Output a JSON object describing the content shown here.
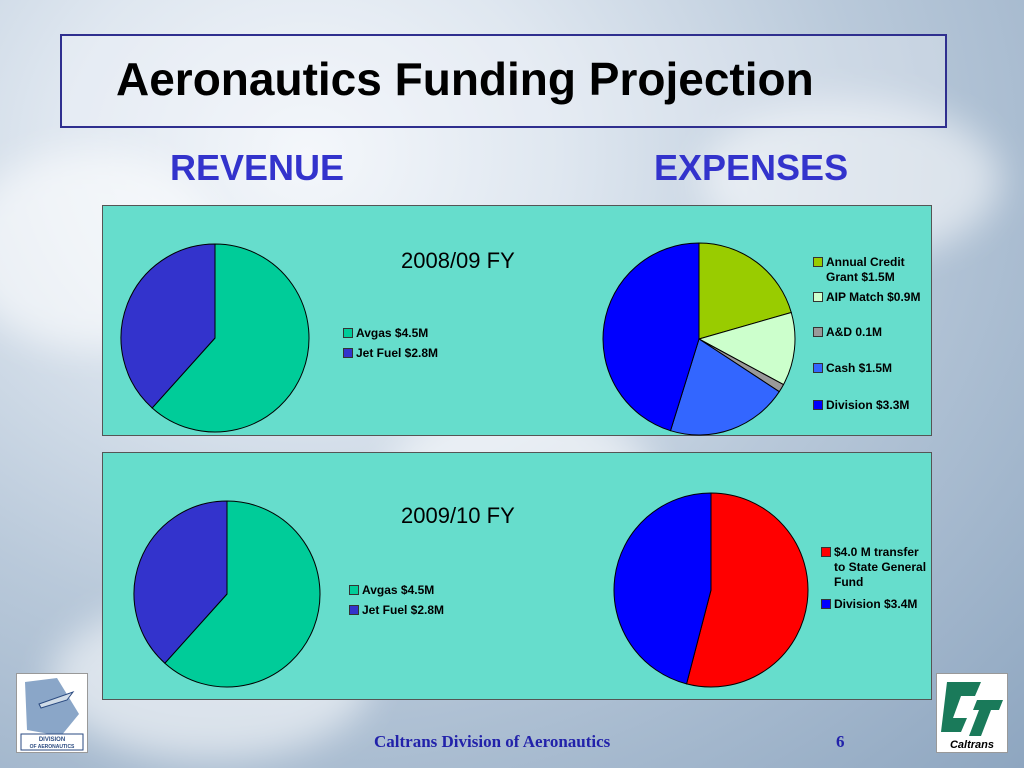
{
  "title": "Aeronautics Funding Projection",
  "revenue_label": "REVENUE",
  "expenses_label": "EXPENSES",
  "footer": {
    "text": "Caltrans Division of Aeronautics",
    "page": "6"
  },
  "logos": {
    "left_lines": [
      "DIVISION",
      "OF AERONAUTICS"
    ],
    "right_text": "Caltrans"
  },
  "chart_data": [
    {
      "type": "pie",
      "title": "2008/09 FY",
      "categories": [
        "Avgas $4.5M",
        "Jet Fuel $2.8M"
      ],
      "values": [
        4.5,
        2.8
      ],
      "colors": [
        "#00cc99",
        "#3333cc"
      ],
      "legend": "right"
    },
    {
      "type": "pie",
      "title": "",
      "categories": [
        "Annual Credit Grant $1.5M",
        "AIP Match $0.9M",
        "A&D 0.1M",
        "Cash $1.5M",
        "Division $3.3M"
      ],
      "values": [
        1.5,
        0.9,
        0.1,
        1.5,
        3.3
      ],
      "colors": [
        "#99cc00",
        "#ccffcc",
        "#999999",
        "#3366ff",
        "#0000ff"
      ],
      "legend": "right"
    },
    {
      "type": "pie",
      "title": "2009/10 FY",
      "categories": [
        "Avgas $4.5M",
        "Jet Fuel $2.8M"
      ],
      "values": [
        4.5,
        2.8
      ],
      "colors": [
        "#00cc99",
        "#3333cc"
      ],
      "legend": "right"
    },
    {
      "type": "pie",
      "title": "",
      "categories": [
        "$4.0 M transfer to State General Fund",
        "Division $3.4M"
      ],
      "values": [
        4.0,
        3.4
      ],
      "colors": [
        "#ff0000",
        "#0000ff"
      ],
      "legend": "right"
    }
  ]
}
